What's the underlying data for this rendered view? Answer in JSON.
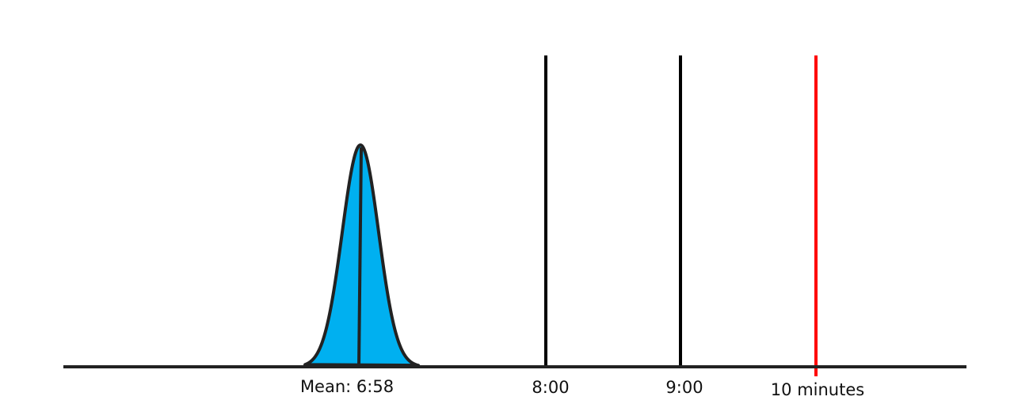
{
  "labels": {
    "mean": "Mean: 6:58",
    "eight": "8:00",
    "nine": "9:00",
    "ten": "10 minutes"
  }
}
